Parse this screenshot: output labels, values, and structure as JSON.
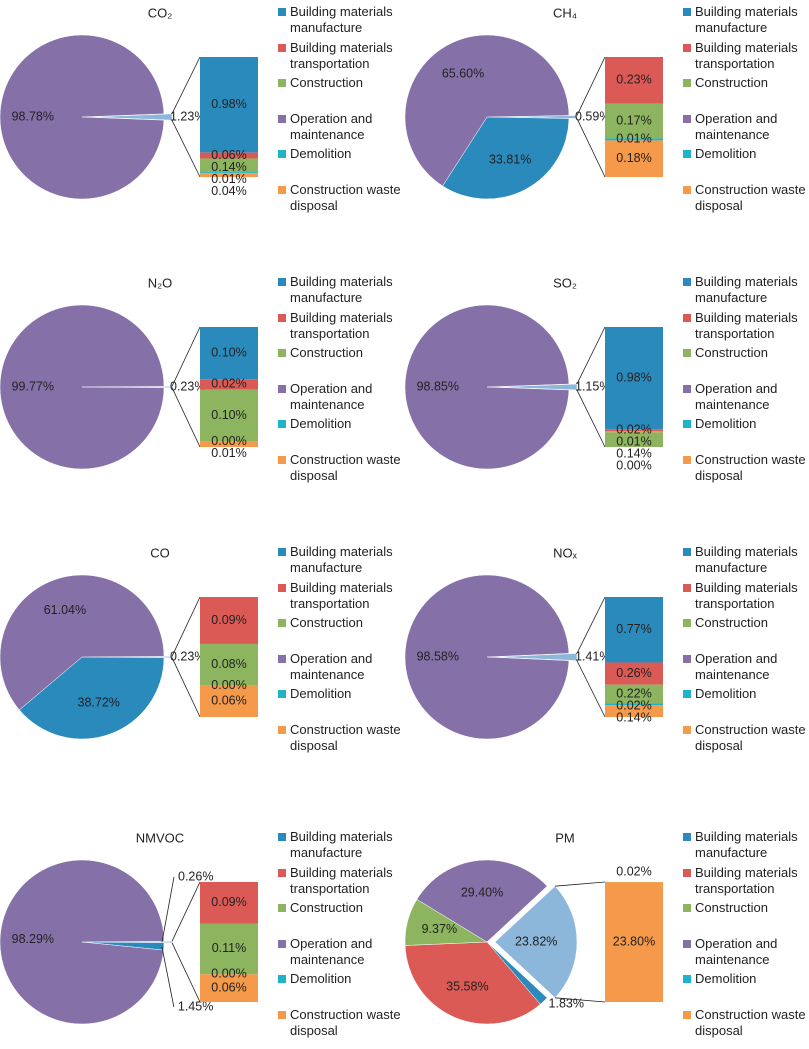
{
  "chart_data": [
    {
      "type": "pie",
      "title": "CO₂",
      "series": [
        {
          "name": "Building materials manufacture",
          "color": "#2a8abc"
        },
        {
          "name": "Building materials transportation",
          "color": "#dc5a55"
        },
        {
          "name": "Construction",
          "color": "#8db55f"
        },
        {
          "name": "Operation and maintenance",
          "color": "#8570a8"
        },
        {
          "name": "Demolition",
          "color": "#1db4c8"
        },
        {
          "name": "Construction waste disposal",
          "color": "#f5994a"
        }
      ],
      "pie": {
        "values": [
          1.23,
          98.78
        ],
        "value_labels": [
          "1.23%",
          "98.78%"
        ],
        "colors": [
          "#8cb6da",
          "#8570a8"
        ]
      },
      "bar": {
        "values": [
          0.98,
          0.06,
          0.14,
          0.01,
          0.04
        ],
        "value_labels": [
          "0.98%",
          "0.06%",
          "0.14%",
          "0.01%",
          "0.04%"
        ],
        "colors": [
          "#2a8abc",
          "#dc5a55",
          "#8db55f",
          "#1db4c8",
          "#f5994a"
        ]
      }
    },
    {
      "type": "pie",
      "title": "CH₄",
      "series": [
        {
          "name": "Building materials manufacture",
          "color": "#2a8abc"
        },
        {
          "name": "Building materials transportation",
          "color": "#dc5a55"
        },
        {
          "name": "Construction",
          "color": "#8db55f"
        },
        {
          "name": "Operation and maintenance",
          "color": "#8570a8"
        },
        {
          "name": "Demolition",
          "color": "#1db4c8"
        },
        {
          "name": "Construction waste disposal",
          "color": "#f5994a"
        }
      ],
      "pie": {
        "values": [
          0.59,
          33.81,
          65.6
        ],
        "value_labels": [
          "0.59%",
          "33.81%",
          "65.60%"
        ],
        "colors": [
          "#8cb6da",
          "#2a8abc",
          "#8570a8"
        ]
      },
      "bar": {
        "values": [
          0.23,
          0.17,
          0.01,
          0.18
        ],
        "value_labels": [
          "0.23%",
          "0.17%",
          "0.01%",
          "0.18%"
        ],
        "colors": [
          "#dc5a55",
          "#8db55f",
          "#1db4c8",
          "#f5994a"
        ]
      }
    },
    {
      "type": "pie",
      "title": "N₂O",
      "series": [
        {
          "name": "Building materials manufacture",
          "color": "#2a8abc"
        },
        {
          "name": "Building materials transportation",
          "color": "#dc5a55"
        },
        {
          "name": "Construction",
          "color": "#8db55f"
        },
        {
          "name": "Operation and maintenance",
          "color": "#8570a8"
        },
        {
          "name": "Demolition",
          "color": "#1db4c8"
        },
        {
          "name": "Construction waste disposal",
          "color": "#f5994a"
        }
      ],
      "pie": {
        "values": [
          0.23,
          99.77
        ],
        "value_labels": [
          "0.23%",
          "99.77%"
        ],
        "colors": [
          "#8cb6da",
          "#8570a8"
        ]
      },
      "bar": {
        "values": [
          0.1,
          0.02,
          0.1,
          0.0,
          0.01
        ],
        "value_labels": [
          "0.10%",
          "0.02%",
          "0.10%",
          "0.00%",
          "0.01%"
        ],
        "colors": [
          "#2a8abc",
          "#dc5a55",
          "#8db55f",
          "#1db4c8",
          "#f5994a"
        ]
      }
    },
    {
      "type": "pie",
      "title": "SO₂",
      "series": [
        {
          "name": "Building materials manufacture",
          "color": "#2a8abc"
        },
        {
          "name": "Building materials transportation",
          "color": "#dc5a55"
        },
        {
          "name": "Construction",
          "color": "#8db55f"
        },
        {
          "name": "Operation and maintenance",
          "color": "#8570a8"
        },
        {
          "name": "Demolition",
          "color": "#1db4c8"
        },
        {
          "name": "Construction waste disposal",
          "color": "#f5994a"
        }
      ],
      "pie": {
        "values": [
          1.15,
          98.85
        ],
        "value_labels": [
          "1.15%",
          "98.85%"
        ],
        "colors": [
          "#8cb6da",
          "#8570a8"
        ]
      },
      "bar": {
        "values": [
          0.98,
          0.02,
          0.01,
          0.14,
          0.0
        ],
        "value_labels": [
          "0.98%",
          "0.02%",
          "0.01%",
          "0.14%",
          "0.00%"
        ],
        "colors": [
          "#2a8abc",
          "#dc5a55",
          "#f5994a",
          "#8db55f",
          "#1db4c8"
        ]
      }
    },
    {
      "type": "pie",
      "title": "CO",
      "series": [
        {
          "name": "Building materials manufacture",
          "color": "#2a8abc"
        },
        {
          "name": "Building materials transportation",
          "color": "#dc5a55"
        },
        {
          "name": "Construction",
          "color": "#8db55f"
        },
        {
          "name": "Operation and maintenance",
          "color": "#8570a8"
        },
        {
          "name": "Demolition",
          "color": "#1db4c8"
        },
        {
          "name": "Construction waste disposal",
          "color": "#f5994a"
        }
      ],
      "pie": {
        "values": [
          0.23,
          38.72,
          61.04
        ],
        "value_labels": [
          "0.23%",
          "38.72%",
          "61.04%"
        ],
        "colors": [
          "#8cb6da",
          "#2a8abc",
          "#8570a8"
        ]
      },
      "bar": {
        "values": [
          0.09,
          0.08,
          0.0,
          0.06
        ],
        "value_labels": [
          "0.09%",
          "0.08%",
          "0.00%",
          "0.06%"
        ],
        "colors": [
          "#dc5a55",
          "#8db55f",
          "#1db4c8",
          "#f5994a"
        ]
      }
    },
    {
      "type": "pie",
      "title": "NOₓ",
      "series": [
        {
          "name": "Building materials manufacture",
          "color": "#2a8abc"
        },
        {
          "name": "Building materials transportation",
          "color": "#dc5a55"
        },
        {
          "name": "Construction",
          "color": "#8db55f"
        },
        {
          "name": "Operation and maintenance",
          "color": "#8570a8"
        },
        {
          "name": "Demolition",
          "color": "#1db4c8"
        },
        {
          "name": "Construction waste disposal",
          "color": "#f5994a"
        }
      ],
      "pie": {
        "values": [
          1.41,
          98.58
        ],
        "value_labels": [
          "1.41%",
          "98.58%"
        ],
        "colors": [
          "#8cb6da",
          "#8570a8"
        ]
      },
      "bar": {
        "values": [
          0.77,
          0.26,
          0.22,
          0.02,
          0.14
        ],
        "value_labels": [
          "0.77%",
          "0.26%",
          "0.22%",
          "0.02%",
          "0.14%"
        ],
        "colors": [
          "#2a8abc",
          "#dc5a55",
          "#8db55f",
          "#1db4c8",
          "#f5994a"
        ]
      }
    },
    {
      "type": "pie",
      "title": "NMVOC",
      "series": [
        {
          "name": "Building materials manufacture",
          "color": "#2a8abc"
        },
        {
          "name": "Building materials transportation",
          "color": "#dc5a55"
        },
        {
          "name": "Construction",
          "color": "#8db55f"
        },
        {
          "name": "Operation and maintenance",
          "color": "#8570a8"
        },
        {
          "name": "Demolition",
          "color": "#1db4c8"
        },
        {
          "name": "Construction waste disposal",
          "color": "#f5994a"
        }
      ],
      "pie": {
        "values": [
          0.26,
          1.45,
          98.29
        ],
        "value_labels": [
          "0.26%",
          "1.45%",
          "98.29%"
        ],
        "colors": [
          "#8cb6da",
          "#2a8abc",
          "#8570a8"
        ]
      },
      "bar": {
        "values": [
          0.09,
          0.11,
          0.0,
          0.06
        ],
        "value_labels": [
          "0.09%",
          "0.11%",
          "0.00%",
          "0.06%"
        ],
        "colors": [
          "#dc5a55",
          "#8db55f",
          "#1db4c8",
          "#f5994a"
        ]
      }
    },
    {
      "type": "pie",
      "title": "PM",
      "series": [
        {
          "name": "Building materials manufacture",
          "color": "#2a8abc"
        },
        {
          "name": "Building materials transportation",
          "color": "#dc5a55"
        },
        {
          "name": "Construction",
          "color": "#8db55f"
        },
        {
          "name": "Operation and maintenance",
          "color": "#8570a8"
        },
        {
          "name": "Demolition",
          "color": "#1db4c8"
        },
        {
          "name": "Construction waste disposal",
          "color": "#f5994a"
        }
      ],
      "pie": {
        "values": [
          23.82,
          1.83,
          35.58,
          9.37,
          29.4
        ],
        "value_labels": [
          "23.82%",
          "1.83%",
          "35.58%",
          "9.37%",
          "29.40%"
        ],
        "colors": [
          "#8cb6da",
          "#2a8abc",
          "#dc5a55",
          "#8db55f",
          "#8570a8"
        ]
      },
      "bar": {
        "values": [
          0.02,
          23.8
        ],
        "value_labels": [
          "0.02%",
          "23.80%"
        ],
        "colors": [
          "#1db4c8",
          "#f5994a"
        ]
      }
    }
  ]
}
